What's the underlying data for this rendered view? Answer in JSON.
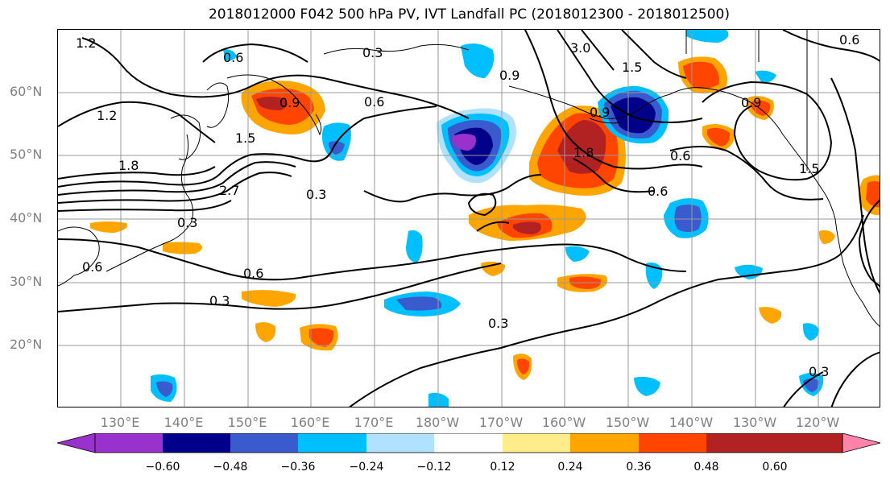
{
  "title": "2018012000 F042 500 hPa PV, IVT Landfall PC (2018012300 - 2018012500)",
  "lat_labels": [
    "60°N",
    "50°N",
    "40°N",
    "30°N",
    "20°N"
  ],
  "lon_labels": [
    "130°E",
    "140°E",
    "150°E",
    "160°E",
    "170°E",
    "180°W",
    "170°W",
    "160°W",
    "150°W",
    "140°W",
    "130°W",
    "120°W"
  ],
  "contour_labels": [
    "1.2",
    "0.6",
    "0.3",
    "3.0",
    "1.5",
    "0.6",
    "0.9",
    "1.2",
    "1.5",
    "0.9",
    "0.6",
    "1.5",
    "0.6",
    "0.3",
    "0.6",
    "0.3",
    "2.7",
    "1.8",
    "0.9",
    "0.3",
    "0.6",
    "0.3",
    "1.8",
    "0.6",
    "0.9",
    "0.3"
  ],
  "colorbar": {
    "ticks": [
      "−0.60",
      "−0.48",
      "−0.36",
      "−0.24",
      "−0.12",
      "0.12",
      "0.24",
      "0.36",
      "0.48",
      "0.60"
    ],
    "colors": [
      "#9932CC",
      "#00008B",
      "#3A5BCD",
      "#00BFFF",
      "#B0E2FF",
      "#FFFFFF",
      "#FFEC8B",
      "#FFA500",
      "#FF4500",
      "#B22222",
      "#FF82AB"
    ]
  },
  "palette": {
    "frame": "#000000",
    "grid": "#999999",
    "coast": "#000000",
    "axis_text": "#808080"
  }
}
